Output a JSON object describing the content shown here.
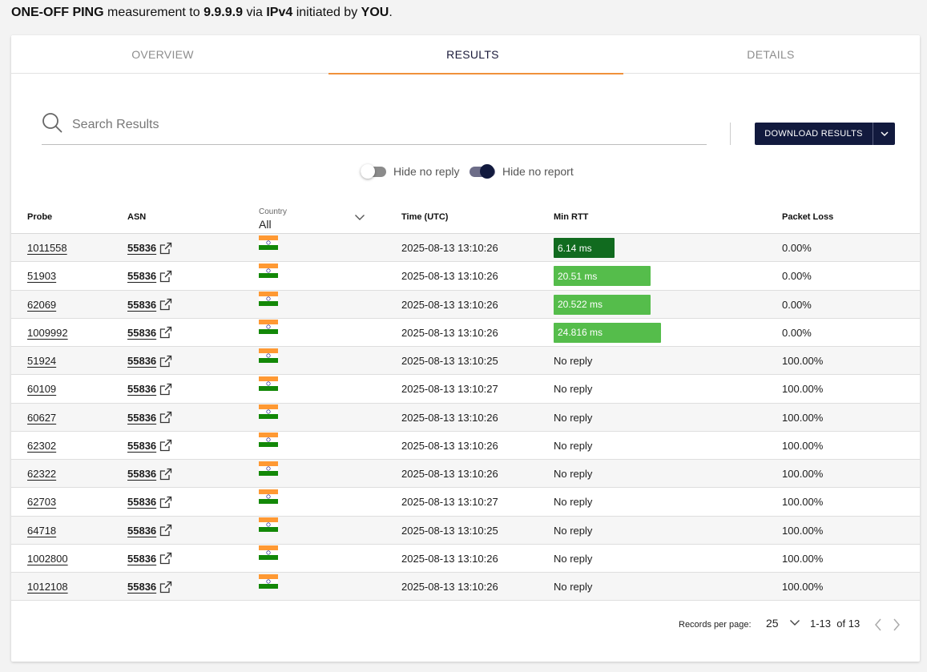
{
  "heading": {
    "part1": "ONE-OFF PING",
    "part2": " measurement to ",
    "target": "9.9.9.9",
    "part3": " via ",
    "protocol": "IPv4",
    "part4": " initiated by ",
    "initiator": "YOU",
    "part5": "."
  },
  "tabs": [
    {
      "label": "OVERVIEW",
      "active": false
    },
    {
      "label": "RESULTS",
      "active": true
    },
    {
      "label": "DETAILS",
      "active": false
    }
  ],
  "search": {
    "placeholder": "Search Results",
    "icon": "search-icon"
  },
  "download": {
    "label": "DOWNLOAD RESULTS",
    "icon": "chevron-down-icon"
  },
  "toggles": [
    {
      "label": "Hide no reply",
      "on": false
    },
    {
      "label": "Hide no report",
      "on": true
    }
  ],
  "columns": {
    "probe": "Probe",
    "asn": "ASN",
    "country_label": "Country",
    "country_value": "All",
    "time": "Time (UTC)",
    "min_rtt": "Min RTT",
    "packet_loss": "Packet Loss"
  },
  "colors": {
    "accent": "#f0913b",
    "primary_dark": "#121a3e",
    "rtt_best": "#116b1f",
    "rtt_good": "#55bd4b"
  },
  "rows": [
    {
      "probe": "1011558",
      "asn": "55836",
      "country": "India",
      "time": "2025-08-13 13:10:26",
      "rtt": "6.14 ms",
      "rtt_ms": 6.14,
      "rtt_color": "#116b1f",
      "loss": "0.00%"
    },
    {
      "probe": "51903",
      "asn": "55836",
      "country": "India",
      "time": "2025-08-13 13:10:26",
      "rtt": "20.51 ms",
      "rtt_ms": 20.51,
      "rtt_color": "#55bd4b",
      "loss": "0.00%"
    },
    {
      "probe": "62069",
      "asn": "55836",
      "country": "India",
      "time": "2025-08-13 13:10:26",
      "rtt": "20.522 ms",
      "rtt_ms": 20.522,
      "rtt_color": "#55bd4b",
      "loss": "0.00%"
    },
    {
      "probe": "1009992",
      "asn": "55836",
      "country": "India",
      "time": "2025-08-13 13:10:26",
      "rtt": "24.816 ms",
      "rtt_ms": 24.816,
      "rtt_color": "#55bd4b",
      "loss": "0.00%"
    },
    {
      "probe": "51924",
      "asn": "55836",
      "country": "India",
      "time": "2025-08-13 13:10:25",
      "rtt": "No reply",
      "rtt_ms": null,
      "loss": "100.00%"
    },
    {
      "probe": "60109",
      "asn": "55836",
      "country": "India",
      "time": "2025-08-13 13:10:27",
      "rtt": "No reply",
      "rtt_ms": null,
      "loss": "100.00%"
    },
    {
      "probe": "60627",
      "asn": "55836",
      "country": "India",
      "time": "2025-08-13 13:10:26",
      "rtt": "No reply",
      "rtt_ms": null,
      "loss": "100.00%"
    },
    {
      "probe": "62302",
      "asn": "55836",
      "country": "India",
      "time": "2025-08-13 13:10:26",
      "rtt": "No reply",
      "rtt_ms": null,
      "loss": "100.00%"
    },
    {
      "probe": "62322",
      "asn": "55836",
      "country": "India",
      "time": "2025-08-13 13:10:26",
      "rtt": "No reply",
      "rtt_ms": null,
      "loss": "100.00%"
    },
    {
      "probe": "62703",
      "asn": "55836",
      "country": "India",
      "time": "2025-08-13 13:10:27",
      "rtt": "No reply",
      "rtt_ms": null,
      "loss": "100.00%"
    },
    {
      "probe": "64718",
      "asn": "55836",
      "country": "India",
      "time": "2025-08-13 13:10:25",
      "rtt": "No reply",
      "rtt_ms": null,
      "loss": "100.00%"
    },
    {
      "probe": "1002800",
      "asn": "55836",
      "country": "India",
      "time": "2025-08-13 13:10:26",
      "rtt": "No reply",
      "rtt_ms": null,
      "loss": "100.00%"
    },
    {
      "probe": "1012108",
      "asn": "55836",
      "country": "India",
      "time": "2025-08-13 13:10:26",
      "rtt": "No reply",
      "rtt_ms": null,
      "loss": "100.00%"
    }
  ],
  "pagination": {
    "records_per_page_label": "Records per page:",
    "records_per_page": "25",
    "range": "1-13",
    "of_text": "of 13",
    "prev_icon": "chevron-left-icon",
    "next_icon": "chevron-right-icon"
  }
}
